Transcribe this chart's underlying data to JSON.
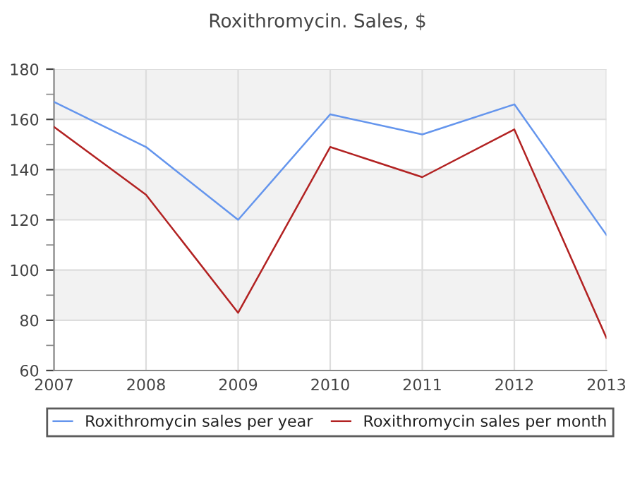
{
  "chart_data": {
    "type": "line",
    "title": "Roxithromycin. Sales, $",
    "x": [
      2007,
      2008,
      2009,
      2010,
      2011,
      2012,
      2013
    ],
    "series": [
      {
        "name": "Roxithromycin sales per year",
        "color": "#6495ed",
        "values": [
          167,
          149,
          120,
          162,
          154,
          166,
          114
        ]
      },
      {
        "name": "Roxithromycin sales per month",
        "color": "#b22222",
        "values": [
          157,
          130,
          83,
          149,
          137,
          156,
          73
        ]
      }
    ],
    "xlim": [
      2007,
      2013
    ],
    "xticks": [
      2007,
      2008,
      2009,
      2010,
      2011,
      2012,
      2013
    ],
    "ylim": [
      60,
      180
    ],
    "yticks": [
      60,
      80,
      100,
      120,
      140,
      160,
      180
    ],
    "bands": [
      {
        "axis": "y",
        "from": 160,
        "to": 180,
        "color": "#f2f2f2"
      },
      {
        "axis": "y",
        "from": 120,
        "to": 140,
        "color": "#f2f2f2"
      },
      {
        "axis": "y",
        "from": 80,
        "to": 100,
        "color": "#f2f2f2"
      }
    ],
    "grid": true,
    "legend": "bottom",
    "marker": "none",
    "line_style": "solid"
  }
}
